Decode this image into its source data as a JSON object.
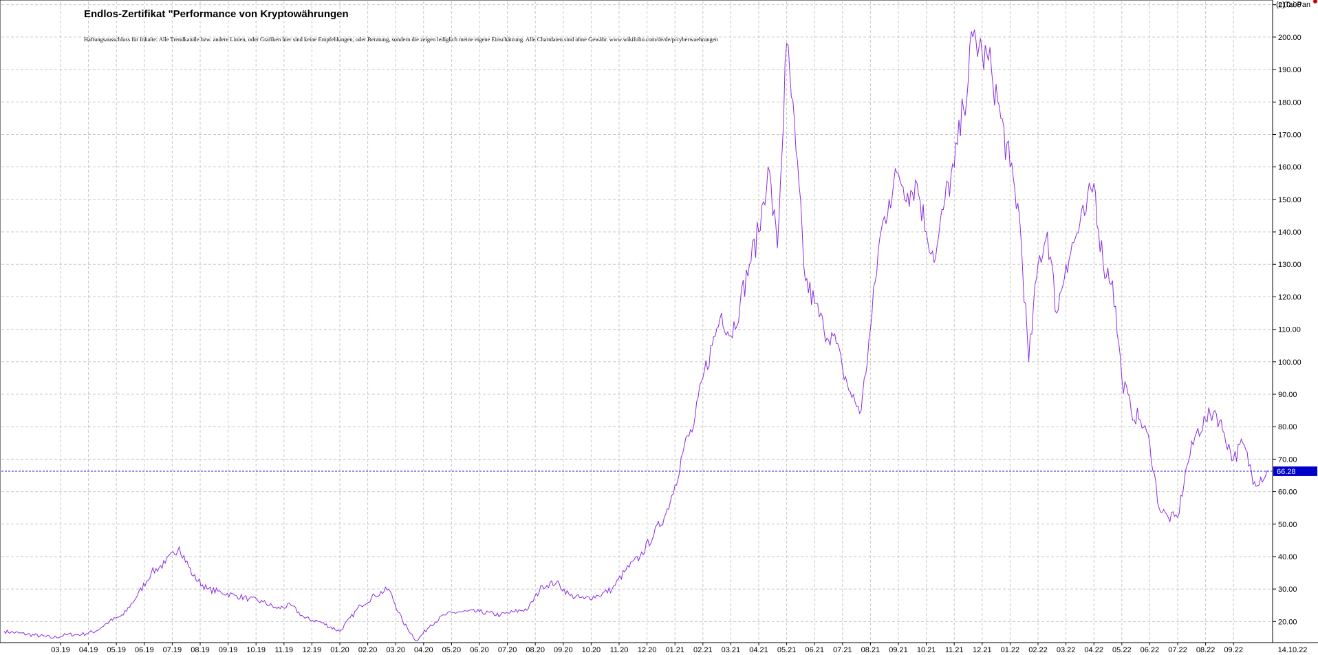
{
  "header": {
    "title": "Endlos-Zertifikat \"Performance von Kryptowährungen",
    "disclaimer": "Haftungsausschluss für Inhalte: Alle Trendkanäle bzw. andere Linien, oder Grafiken hier sind keine Empfehlungen, oder Beratung, sondern die zeigen lediglich meine eigene Einschätzung. Alle Chartdaten sind ohne Gewähr. www.wikifolio.com/de/de/p/cyberwaehrungen",
    "copyright": "(c)Tai-Pan"
  },
  "colors": {
    "series_line": "#8a2be2",
    "last_value_line": "#0000cc",
    "last_value_badge": "#0000cc",
    "grid": "#c8c8c8",
    "axis": "#000000"
  },
  "chart_data": {
    "type": "line",
    "title": "Endlos-Zertifikat \"Performance von Kryptowährungen",
    "xlabel": "",
    "ylabel": "",
    "ylim": [
      13.5,
      211
    ],
    "y_ticks": [
      "20.00",
      "30.00",
      "40.00",
      "50.00",
      "60.00",
      "70.00",
      "80.00",
      "90.00",
      "100.00",
      "110.00",
      "120.00",
      "130.00",
      "140.00",
      "150.00",
      "160.00",
      "170.00",
      "180.00",
      "190.00",
      "200.00",
      "210.00"
    ],
    "x_ticks": [
      "03.19",
      "04.19",
      "05.19",
      "06.19",
      "07.19",
      "08.19",
      "09.19",
      "10.19",
      "11.19",
      "12.19",
      "01.20",
      "02.20",
      "03.20",
      "04.20",
      "05.20",
      "06.20",
      "07.20",
      "08.20",
      "09.20",
      "10.20",
      "11.20",
      "12.20",
      "01.21",
      "02.21",
      "03.21",
      "04.21",
      "05.21",
      "06.21",
      "07.21",
      "08.21",
      "09.21",
      "10.21",
      "11.21",
      "12.21",
      "01.22",
      "02.22",
      "03.22",
      "04.22",
      "05.22",
      "06.22",
      "07.22",
      "08.22",
      "09.22"
    ],
    "x_end_label": "14.10.22",
    "grid": true,
    "last_value": 66.28,
    "last_value_label": "66.28",
    "series": [
      {
        "x": [
          "02.19",
          "03.19",
          "03.19",
          "04.19",
          "04.19",
          "05.19",
          "05.19",
          "06.19",
          "06.19",
          "07.19",
          "07.19",
          "08.19",
          "08.19",
          "09.19",
          "09.19",
          "10.19",
          "10.19",
          "11.19",
          "11.19",
          "12.19",
          "12.19",
          "01.20",
          "02.20",
          "02.20",
          "03.20",
          "03.20",
          "04.20",
          "04.20",
          "05.20",
          "05.20",
          "06.20",
          "07.20",
          "07.20",
          "08.20",
          "08.20",
          "09.20",
          "09.20",
          "10.20",
          "10.20",
          "11.20",
          "11.20",
          "12.20",
          "12.20",
          "01.21",
          "01.21",
          "01.21",
          "02.21",
          "02.21",
          "02.21",
          "03.21",
          "03.21",
          "03.21",
          "04.21",
          "04.21",
          "04.21",
          "05.21",
          "05.21",
          "05.21",
          "06.21",
          "06.21",
          "06.21",
          "07.21",
          "07.21",
          "07.21",
          "08.21",
          "08.21",
          "08.21",
          "09.21",
          "09.21",
          "09.21",
          "10.21",
          "10.21",
          "10.21",
          "11.21",
          "11.21",
          "11.21",
          "12.21",
          "12.21",
          "12.21",
          "01.22",
          "01.22",
          "01.22",
          "02.22",
          "02.22",
          "02.22",
          "03.22",
          "03.22",
          "03.22",
          "04.22",
          "04.22",
          "04.22",
          "05.22",
          "05.22",
          "05.22",
          "06.22",
          "06.22",
          "06.22",
          "07.22",
          "07.22",
          "07.22",
          "08.22",
          "08.22",
          "08.22",
          "09.22",
          "09.22",
          "09.22",
          "10.22",
          "10.22"
        ],
        "values": [
          17,
          15,
          16,
          16,
          17,
          20,
          22,
          28,
          35,
          38,
          43,
          34,
          30,
          29,
          28,
          27,
          26,
          24,
          25,
          21,
          20,
          17,
          25,
          28,
          30,
          20,
          14,
          19,
          22,
          23,
          23,
          22,
          23,
          24,
          31,
          32,
          28,
          27,
          28,
          30,
          36,
          40,
          47,
          53,
          62,
          74,
          80,
          95,
          105,
          115,
          108,
          118,
          130,
          140,
          160,
          135,
          198,
          165,
          125,
          118,
          110,
          108,
          98,
          89,
          85,
          110,
          138,
          150,
          158,
          152,
          155,
          140,
          132,
          150,
          160,
          178,
          200,
          195,
          190,
          175,
          160,
          145,
          100,
          130,
          140,
          115,
          130,
          138,
          145,
          155,
          130,
          125,
          95,
          85,
          82,
          75,
          55,
          52,
          52,
          68,
          78,
          82,
          85,
          78,
          70,
          75,
          63,
          66
        ]
      }
    ]
  }
}
